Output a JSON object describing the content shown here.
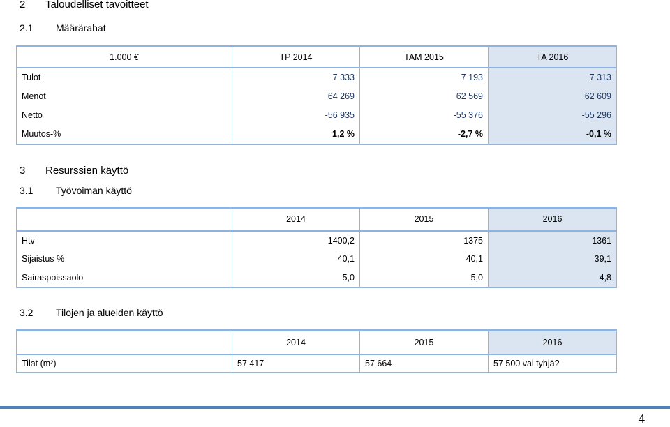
{
  "sections": {
    "s2": {
      "num": "2",
      "title": "Taloudelliset tavoitteet"
    },
    "s2_1": {
      "num": "2.1",
      "title": "Määrärahat"
    },
    "s3": {
      "num": "3",
      "title": "Resurssien käyttö"
    },
    "s3_1": {
      "num": "3.1",
      "title": "Työvoiman käyttö"
    },
    "s3_2": {
      "num": "3.2",
      "title": "Tilojen ja alueiden käyttö"
    }
  },
  "finance_table": {
    "headers": [
      "1.000 €",
      "TP 2014",
      "TAM 2015",
      "TA 2016"
    ],
    "rows": [
      [
        "Tulot",
        "7 333",
        "7 193",
        "7 313"
      ],
      [
        "Menot",
        "64 269",
        "62 569",
        "62 609"
      ],
      [
        "Netto",
        "-56 935",
        "-55 376",
        "-55 296"
      ],
      [
        "Muutos-%",
        "1,2 %",
        "-2,7 %",
        "-0,1 %"
      ]
    ]
  },
  "labor_table": {
    "headers": [
      "",
      "2014",
      "2015",
      "2016"
    ],
    "rows": [
      [
        "Htv",
        "1400,2",
        "1375",
        "1361"
      ],
      [
        "Sijaistus %",
        "40,1",
        "40,1",
        "39,1"
      ],
      [
        "Sairaspoissaolo",
        "5,0",
        "5,0",
        "4,8"
      ]
    ]
  },
  "space_table": {
    "headers": [
      "",
      "2014",
      "2015",
      "2016"
    ],
    "rows": [
      [
        "Tilat  (m²)",
        "57 417",
        "57 664",
        "57 500 vai tyhjä?"
      ]
    ]
  },
  "page_number": "4",
  "colors": {
    "header_border": "#8db3e2",
    "shade": "#dbe5f1",
    "number_text": "#1f3864",
    "bottom_bar": "#4f81bd"
  }
}
